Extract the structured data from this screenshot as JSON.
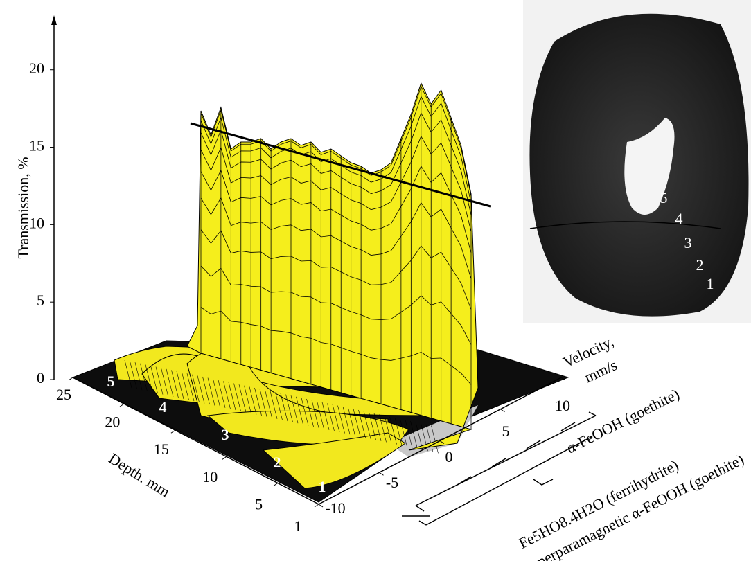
{
  "chart_data": {
    "type": "surface",
    "zlabel": "Transmission, %",
    "zlim": [
      0,
      22
    ],
    "zticks": [
      0,
      5,
      10,
      15,
      20
    ],
    "depth_label": "Depth, mm",
    "depth_lim": [
      25,
      1
    ],
    "depth_ticks": [
      25,
      20,
      15,
      10,
      5,
      1
    ],
    "velocity_label": [
      "Velocity,",
      "mm/s"
    ],
    "velocity_lim": [
      -10,
      10
    ],
    "velocity_ticks": [
      -10,
      -5,
      0,
      5,
      10
    ],
    "zones": [
      "5",
      "4",
      "3",
      "2",
      "1"
    ],
    "annotations": [
      "α-FeOOH (goethite)",
      "Fe5HO8.4H2O (ferrihydrite)",
      "and superparamagnetic α-FeOOH (goethite)"
    ],
    "photo_labels": [
      "5",
      "4",
      "3",
      "2",
      "1"
    ]
  }
}
